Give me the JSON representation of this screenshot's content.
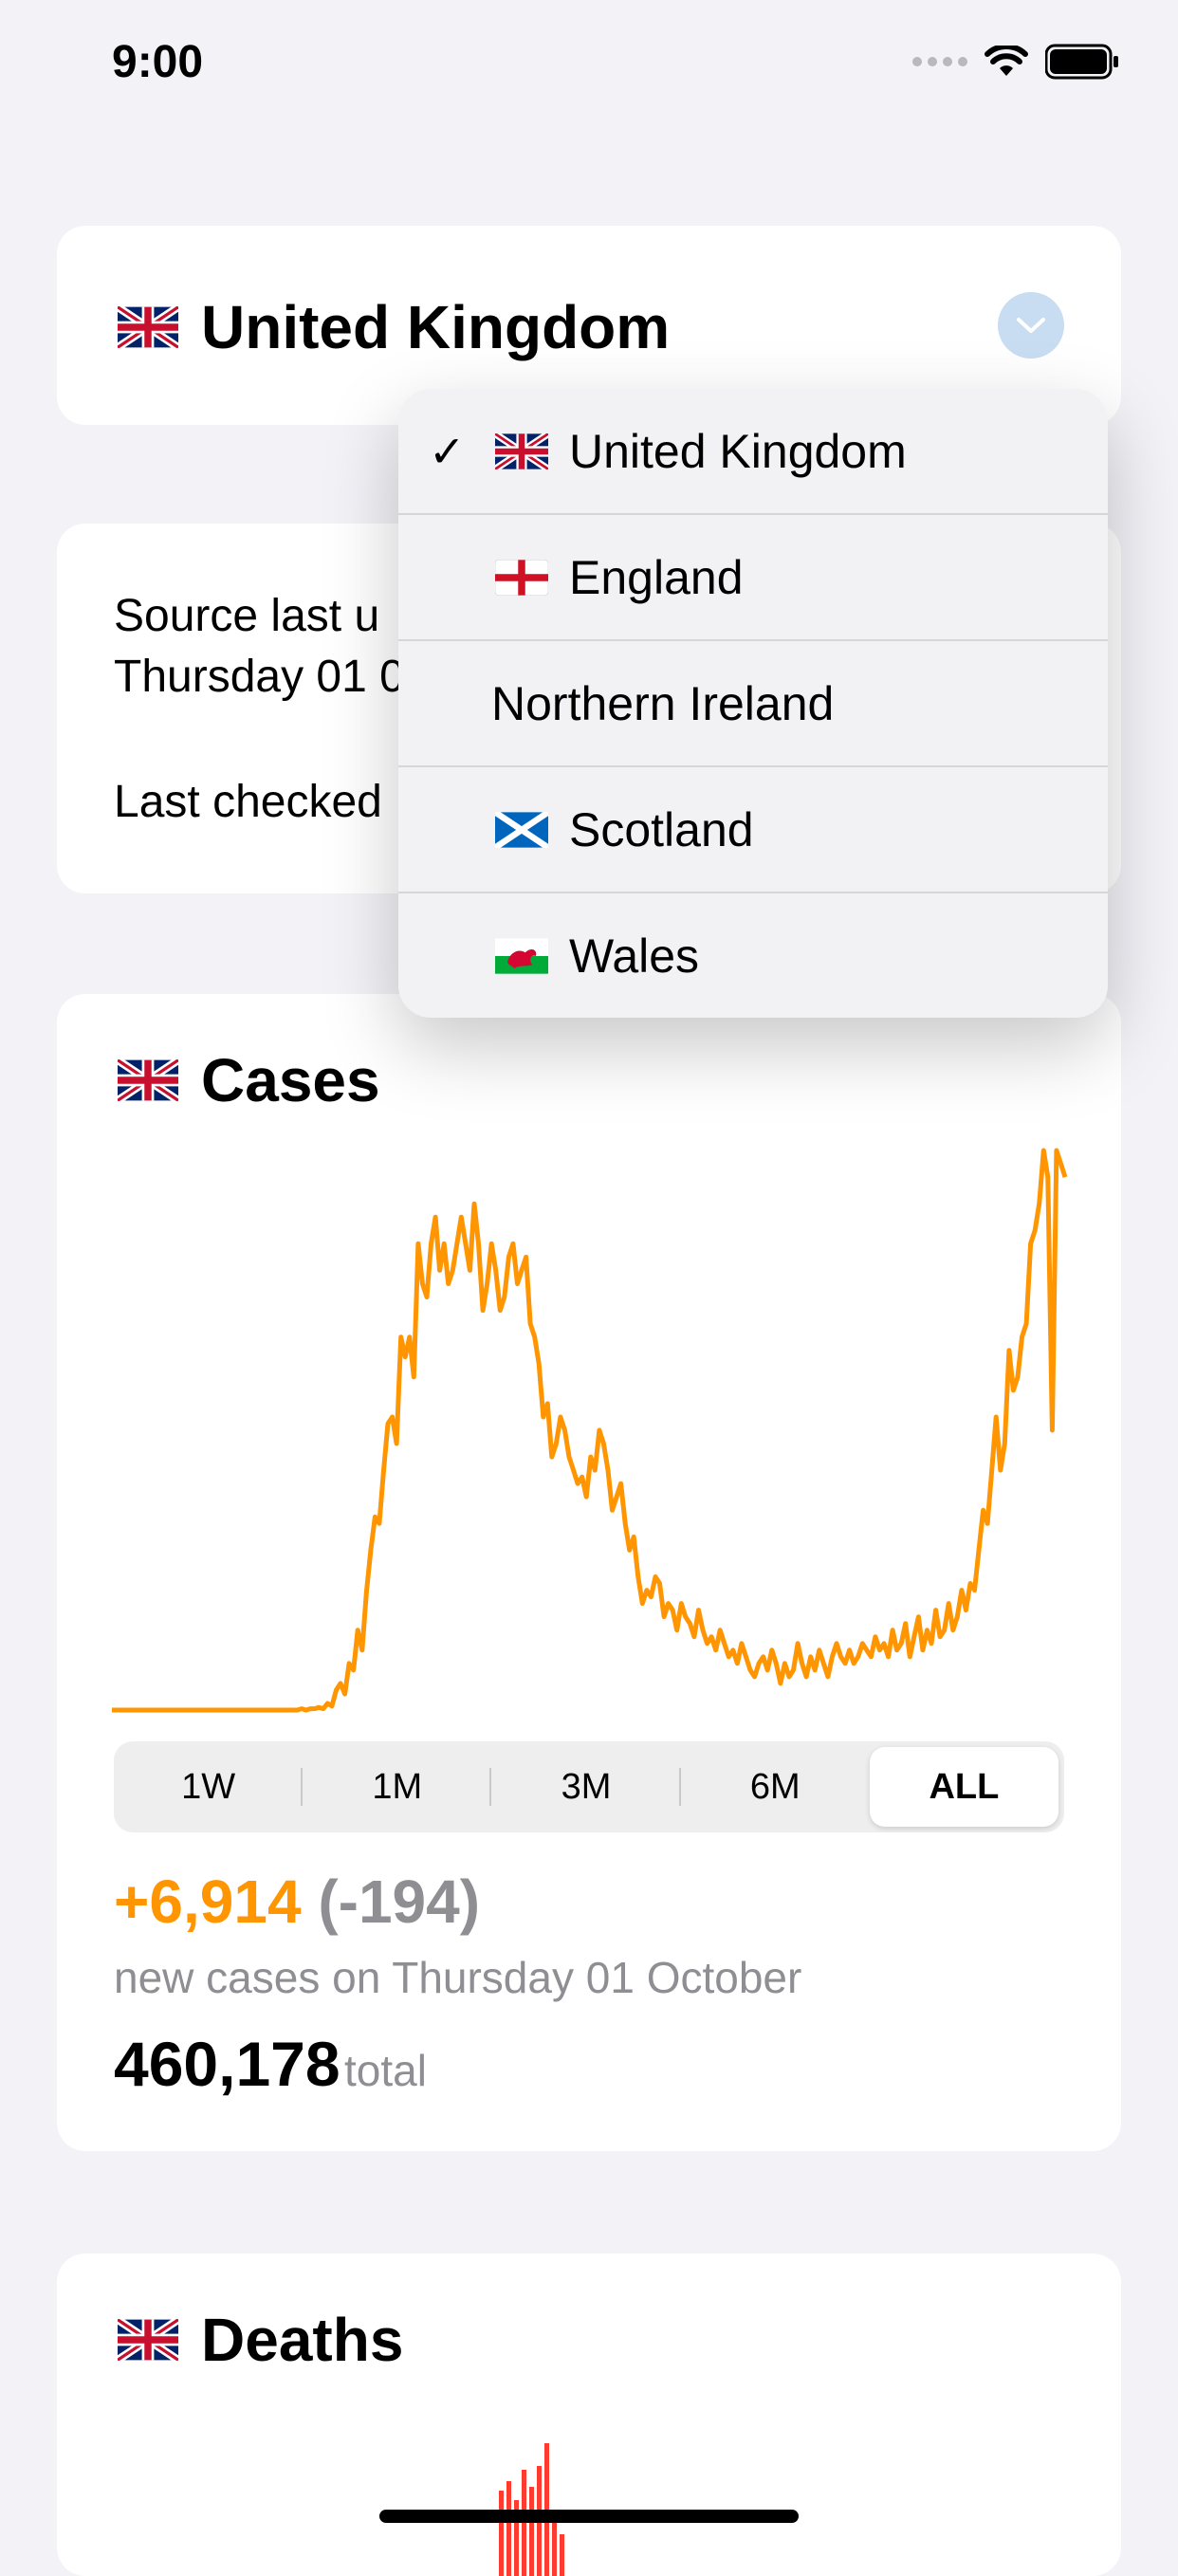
{
  "status_bar": {
    "time": "9:00"
  },
  "header": {
    "country": "United Kingdom",
    "flag_icon": "uk-flag-icon"
  },
  "info": {
    "line1": "Source last u",
    "line2": "Thursday 01 0",
    "line3": "Last checked"
  },
  "dropdown": {
    "items": [
      {
        "label": "United Kingdom",
        "flag": "uk-flag-icon",
        "selected": true
      },
      {
        "label": "England",
        "flag": "england-flag-icon",
        "selected": false
      },
      {
        "label": "Northern Ireland",
        "flag": "",
        "selected": false
      },
      {
        "label": "Scotland",
        "flag": "scotland-flag-icon",
        "selected": false
      },
      {
        "label": "Wales",
        "flag": "wales-flag-icon",
        "selected": false
      }
    ]
  },
  "cases": {
    "title": "Cases",
    "range_tabs": [
      "1W",
      "1M",
      "3M",
      "6M",
      "ALL"
    ],
    "active_tab": "ALL",
    "new_cases": "+6,914",
    "change": "(-194)",
    "subtitle": "new cases on Thursday 01 October",
    "total": "460,178",
    "total_label": "total"
  },
  "deaths": {
    "title": "Deaths"
  },
  "colors": {
    "accent": "#ff9500",
    "deaths": "#ff3b30",
    "background": "#f2f2f7"
  },
  "chart_data": {
    "type": "line",
    "series": [
      {
        "values": [
          0,
          0,
          0,
          0,
          0,
          0,
          0,
          0,
          0,
          0,
          0,
          0,
          0,
          0,
          0,
          0,
          0,
          0,
          0,
          0,
          0,
          0,
          0,
          0,
          0,
          0,
          0,
          0,
          0,
          0,
          0,
          0,
          0,
          0,
          0,
          0,
          0,
          0,
          0,
          0,
          0,
          0,
          0,
          0,
          1,
          0,
          1,
          1,
          2,
          1,
          5,
          3,
          15,
          20,
          12,
          35,
          30,
          60,
          45,
          88,
          120,
          145,
          140,
          180,
          215,
          220,
          200,
          280,
          265,
          280,
          250,
          350,
          320,
          310,
          350,
          370,
          330,
          350,
          320,
          330,
          350,
          370,
          350,
          330,
          380,
          350,
          300,
          320,
          350,
          330,
          300,
          310,
          340,
          350,
          320,
          330,
          340,
          290,
          280,
          260,
          220,
          230,
          190,
          200,
          220,
          210,
          190,
          180,
          170,
          175,
          160,
          190,
          180,
          210,
          200,
          180,
          150,
          160,
          170,
          140,
          120,
          130,
          100,
          80,
          90,
          85,
          100,
          95,
          70,
          80,
          75,
          60,
          80,
          70,
          65,
          55,
          75,
          60,
          50,
          55,
          45,
          60,
          50,
          40,
          45,
          35,
          50,
          40,
          30,
          25,
          35,
          40,
          30,
          45,
          35,
          20,
          35,
          25,
          30,
          50,
          35,
          25,
          40,
          30,
          45,
          35,
          25,
          40,
          50,
          40,
          35,
          45,
          35,
          40,
          50,
          45,
          40,
          55,
          45,
          50,
          40,
          60,
          45,
          50,
          65,
          40,
          55,
          70,
          45,
          60,
          50,
          75,
          55,
          60,
          80,
          60,
          70,
          90,
          75,
          95,
          90,
          120,
          150,
          140,
          180,
          220,
          180,
          200,
          270,
          240,
          250,
          280,
          290,
          350,
          360,
          380,
          420,
          400,
          210,
          420,
          410,
          400
        ]
      }
    ],
    "ylim": [
      0,
      420
    ]
  }
}
